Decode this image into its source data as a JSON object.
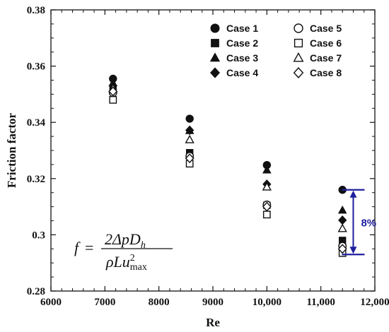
{
  "chart_data": {
    "type": "scatter",
    "xlabel": "Re",
    "ylabel": "Friction factor",
    "xlim": [
      6000,
      12000
    ],
    "ylim": [
      0.28,
      0.38
    ],
    "x_ticks": [
      6000,
      7000,
      8000,
      9000,
      10000,
      11000,
      12000
    ],
    "x_tick_labels": [
      "6000",
      "7000",
      "8000",
      "9000",
      "10,000",
      "11,000",
      "12,000"
    ],
    "y_ticks": [
      0.28,
      0.3,
      0.32,
      0.34,
      0.36,
      0.38
    ],
    "y_tick_labels": [
      "0.28",
      "0.3",
      "0.32",
      "0.34",
      "0.36",
      "0.38"
    ],
    "grid": false,
    "legend_position": "top-right",
    "x": [
      7150,
      8570,
      10000,
      11400
    ],
    "series": [
      {
        "name": "Case 1",
        "marker": "circle-filled",
        "values": [
          0.3555,
          0.3413,
          0.3248,
          0.316
        ]
      },
      {
        "name": "Case 2",
        "marker": "square-filled",
        "values": [
          0.3515,
          0.3292,
          0.3105,
          0.298
        ]
      },
      {
        "name": "Case 3",
        "marker": "triangle-filled",
        "values": [
          0.354,
          0.337,
          0.323,
          0.3087
        ]
      },
      {
        "name": "Case 4",
        "marker": "diamond-filled",
        "values": [
          0.353,
          0.3372,
          0.318,
          0.3052
        ]
      },
      {
        "name": "Case 5",
        "marker": "circle-open",
        "values": [
          0.3505,
          0.328,
          0.3107,
          0.296
        ]
      },
      {
        "name": "Case 6",
        "marker": "square-open",
        "values": [
          0.348,
          0.3253,
          0.3072,
          0.2935
        ]
      },
      {
        "name": "Case 7",
        "marker": "triangle-open",
        "values": [
          0.352,
          0.3338,
          0.317,
          0.3022
        ]
      },
      {
        "name": "Case 8",
        "marker": "diamond-open",
        "values": [
          0.351,
          0.3272,
          0.31,
          0.295
        ]
      }
    ],
    "annotation": {
      "text": "8%",
      "color": "#1f1f9e",
      "x": 11600,
      "y_from": 0.316,
      "y_to": 0.293
    }
  },
  "formula": {
    "lhs": "f",
    "eq": "=",
    "num_main": "2ΔpD",
    "num_sub": "h",
    "den_main": "ρLu",
    "den_sup": "2",
    "den_sub": "max"
  }
}
